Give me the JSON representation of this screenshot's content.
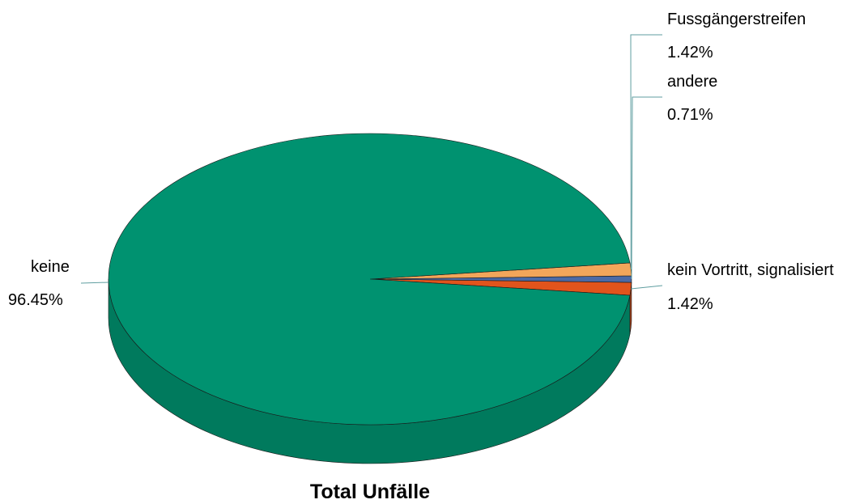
{
  "chart_data": {
    "type": "pie",
    "title": "Total Unfälle",
    "style": "3d",
    "slices": [
      {
        "label": "keine",
        "value": 96.45,
        "value_label": "96.45%",
        "color": "#009270"
      },
      {
        "label": "Fussgängerstreifen",
        "value": 1.42,
        "value_label": "1.42%",
        "color": "#f2a65a"
      },
      {
        "label": "andere",
        "value": 0.71,
        "value_label": "0.71%",
        "color": "#4b6aa6"
      },
      {
        "label": "kein Vortritt, signalisiert",
        "value": 1.42,
        "value_label": "1.42%",
        "color": "#e1541c"
      }
    ],
    "side_color": "#007a5d"
  }
}
